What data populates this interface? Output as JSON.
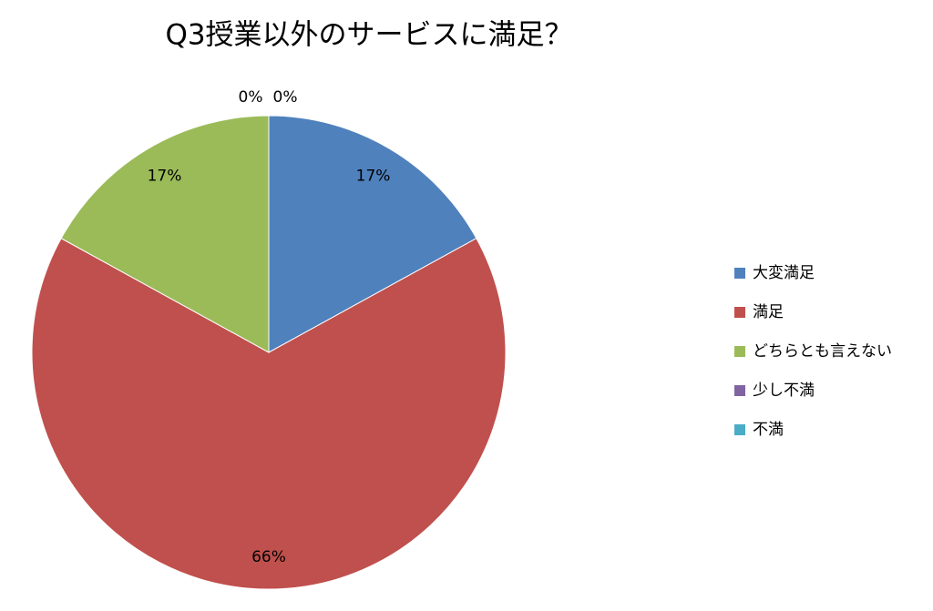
{
  "chart_data": {
    "type": "pie",
    "title": "Q3授業以外のサービスに満足？",
    "categories": [
      "大変満足",
      "満足",
      "どちらとも言えない",
      "少し不満",
      "不満"
    ],
    "values": [
      17,
      66,
      17,
      0,
      0
    ],
    "value_labels": [
      "17%",
      "66%",
      "17%",
      "0%",
      "0%"
    ],
    "colors": [
      "#4f81bd",
      "#c0504d",
      "#9bbb59",
      "#8064a2",
      "#4bacc6"
    ],
    "legend": "right"
  }
}
